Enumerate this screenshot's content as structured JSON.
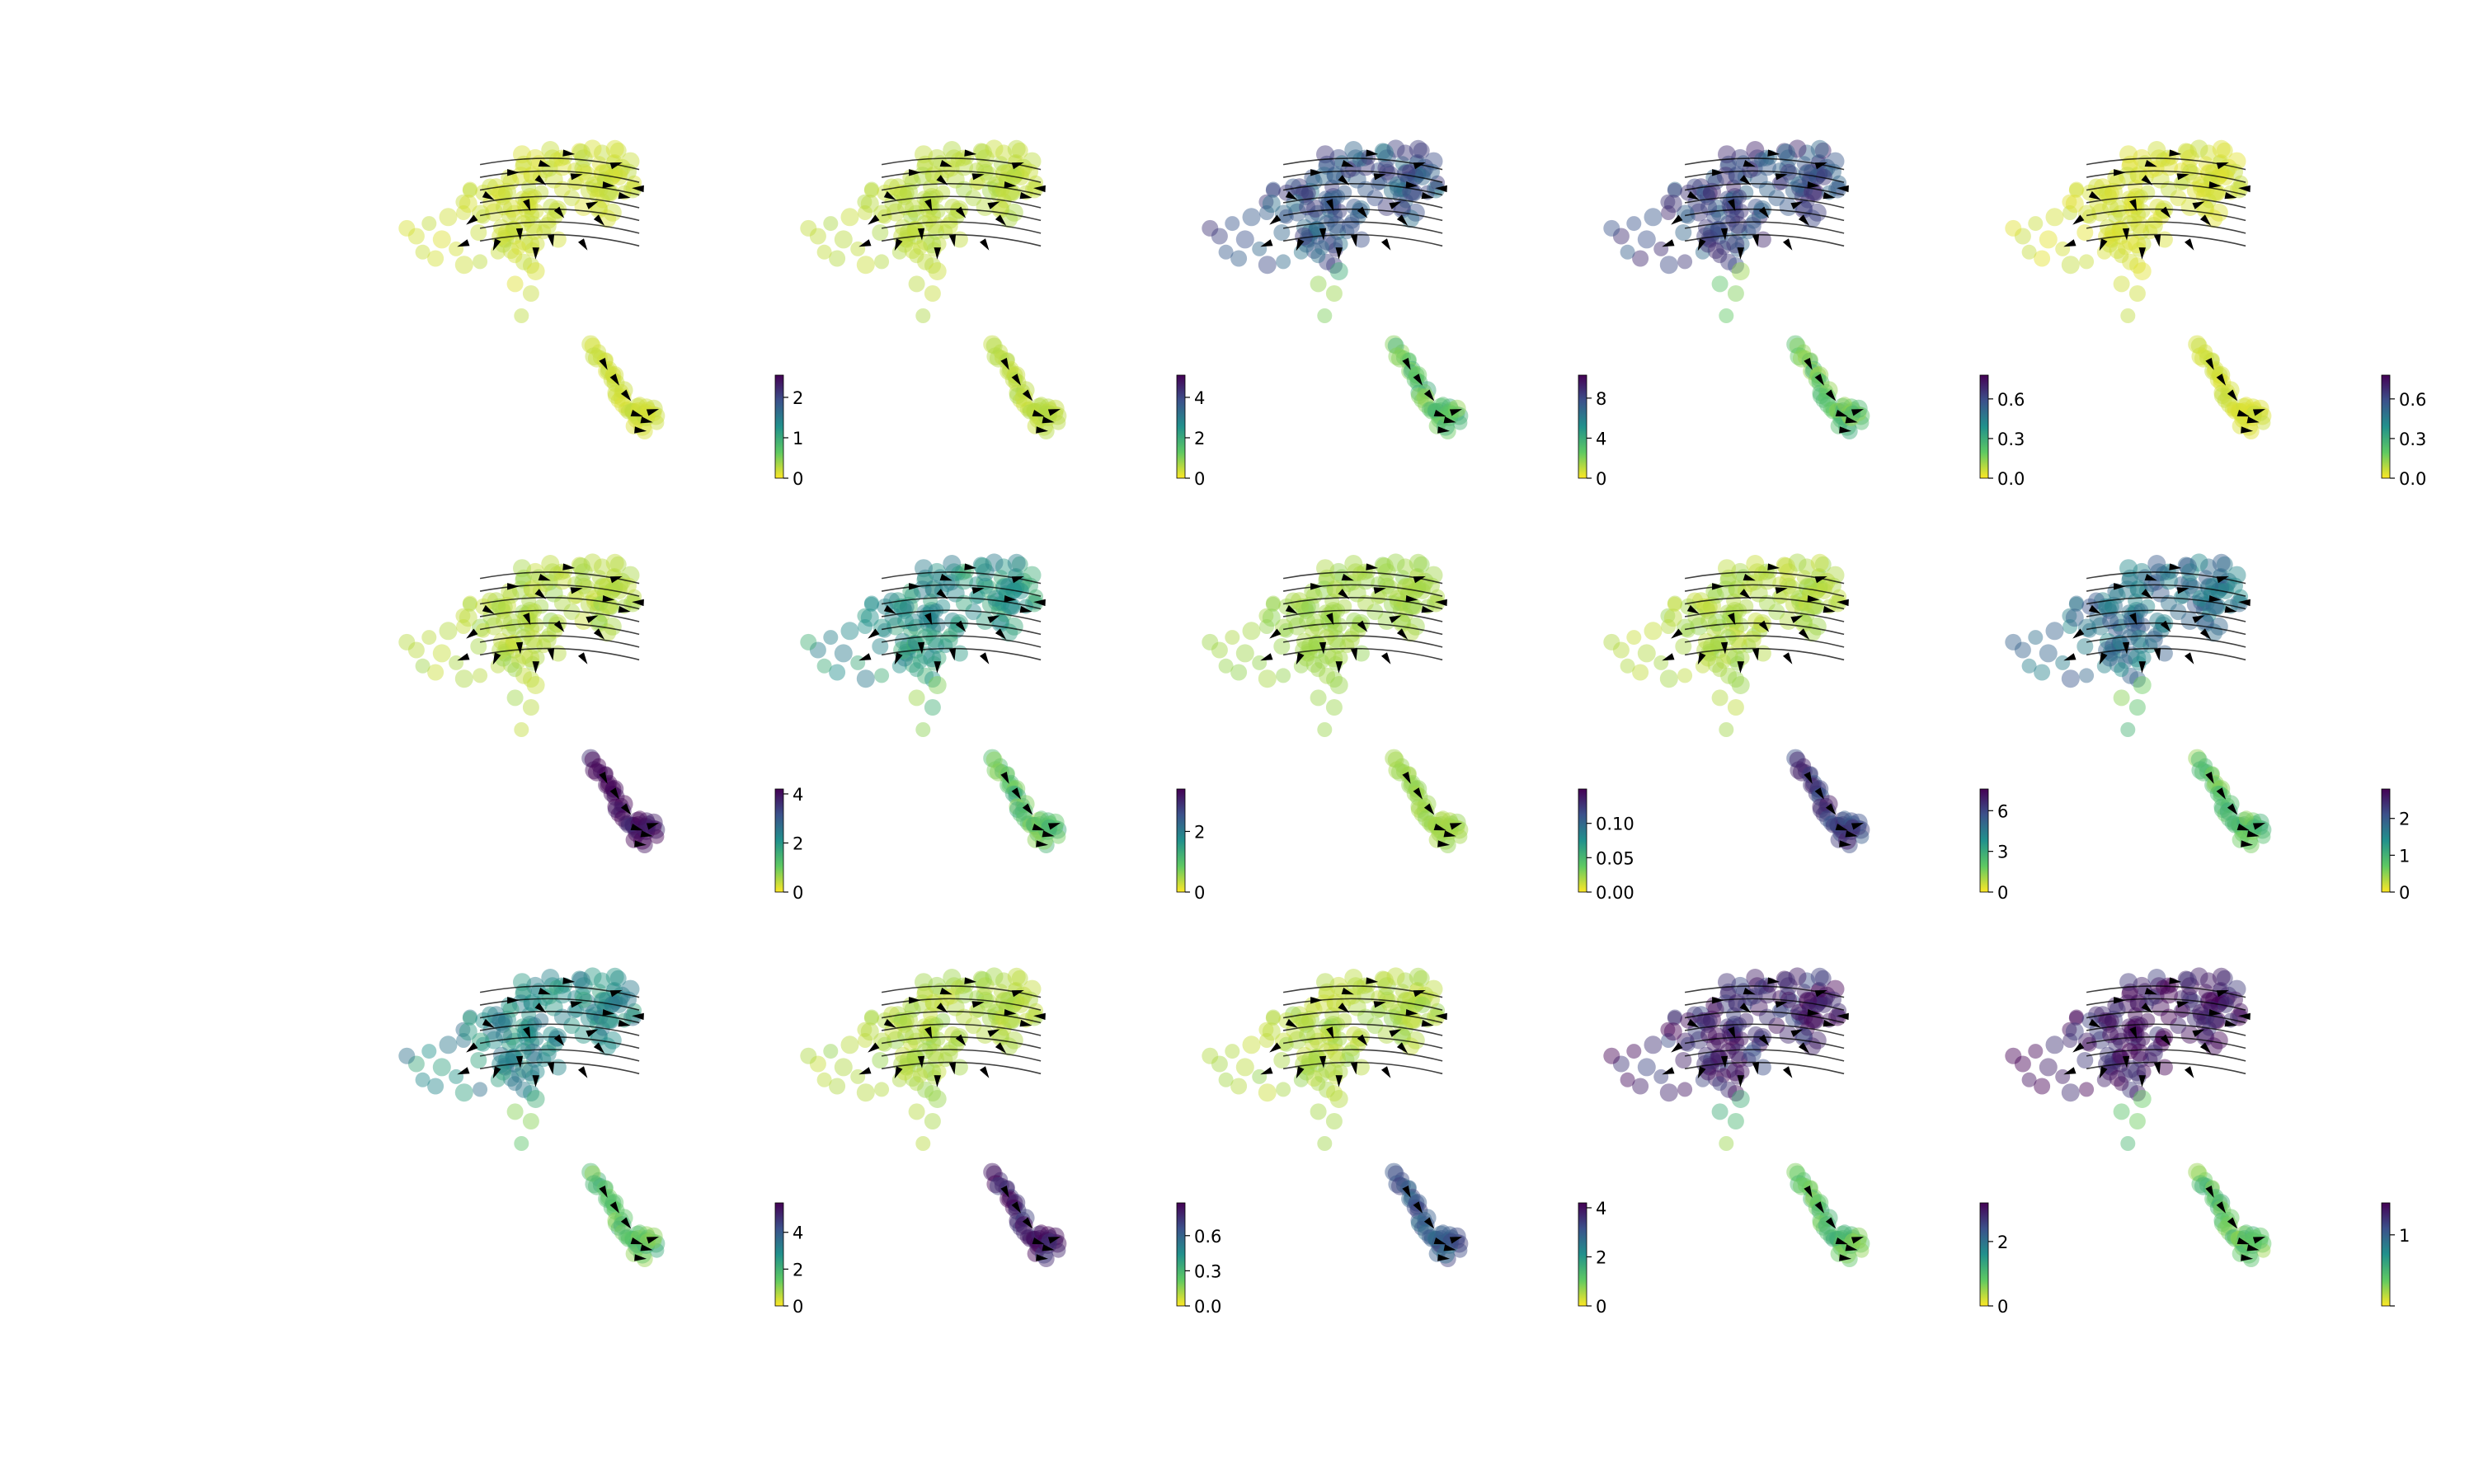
{
  "figure": {
    "colormap": [
      "#fde725",
      "#5ec962",
      "#21918c",
      "#3b528b",
      "#440154"
    ],
    "arrow_color": "#000000"
  },
  "chart_data": [
    {
      "type": "scatter",
      "panel": "r1c1",
      "colorbar_ticks": [
        {
          "v": 0,
          "label": "0"
        },
        {
          "v": 1,
          "label": "1"
        },
        {
          "v": 2,
          "label": "2"
        }
      ],
      "colorbar_range": [
        0,
        2.55
      ],
      "bright_region": "none",
      "level": 0.05
    },
    {
      "type": "scatter",
      "panel": "r1c2",
      "colorbar_ticks": [
        {
          "v": 0,
          "label": "0"
        },
        {
          "v": 2,
          "label": "2"
        },
        {
          "v": 4,
          "label": "4"
        }
      ],
      "colorbar_range": [
        0,
        5.1
      ],
      "bright_region": "none",
      "level": 0.08
    },
    {
      "type": "scatter",
      "panel": "r1c3",
      "colorbar_ticks": [
        {
          "v": 0,
          "label": "0"
        },
        {
          "v": 4,
          "label": "4"
        },
        {
          "v": 8,
          "label": "8"
        }
      ],
      "colorbar_range": [
        0,
        10.3
      ],
      "bright_region": "upper",
      "level": 0.7
    },
    {
      "type": "scatter",
      "panel": "r1c4",
      "colorbar_ticks": [
        {
          "v": 0,
          "label": "0.0"
        },
        {
          "v": 0.3,
          "label": "0.3"
        },
        {
          "v": 0.6,
          "label": "0.6"
        }
      ],
      "colorbar_range": [
        0,
        0.78
      ],
      "bright_region": "upper",
      "level": 0.75
    },
    {
      "type": "scatter",
      "panel": "r1c5",
      "colorbar_ticks": [
        {
          "v": 0,
          "label": "0.0"
        },
        {
          "v": 0.3,
          "label": "0.3"
        },
        {
          "v": 0.6,
          "label": "0.6"
        }
      ],
      "colorbar_range": [
        0,
        0.78
      ],
      "bright_region": "none",
      "level": 0.04
    },
    {
      "type": "scatter",
      "panel": "r2c1",
      "colorbar_ticks": [
        {
          "v": 0,
          "label": "0"
        },
        {
          "v": 2,
          "label": "2"
        },
        {
          "v": 4,
          "label": "4"
        }
      ],
      "colorbar_range": [
        0,
        4.2
      ],
      "bright_region": "lower",
      "level": 0.95
    },
    {
      "type": "scatter",
      "panel": "r2c2",
      "colorbar_ticks": [
        {
          "v": 0,
          "label": "0"
        },
        {
          "v": 2,
          "label": "2"
        }
      ],
      "colorbar_range": [
        0,
        3.4
      ],
      "bright_region": "upper",
      "level": 0.45
    },
    {
      "type": "scatter",
      "panel": "r2c3",
      "colorbar_ticks": [
        {
          "v": 0,
          "label": "0.00"
        },
        {
          "v": 0.05,
          "label": "0.05"
        },
        {
          "v": 0.1,
          "label": "0.10"
        }
      ],
      "colorbar_range": [
        0,
        0.15
      ],
      "bright_region": "none",
      "level": 0.12
    },
    {
      "type": "scatter",
      "panel": "r2c4",
      "colorbar_ticks": [
        {
          "v": 0,
          "label": "0"
        },
        {
          "v": 3,
          "label": "3"
        },
        {
          "v": 6,
          "label": "6"
        }
      ],
      "colorbar_range": [
        0,
        7.6
      ],
      "bright_region": "lower",
      "level": 0.8
    },
    {
      "type": "scatter",
      "panel": "r2c5",
      "colorbar_ticks": [
        {
          "v": 0,
          "label": "0"
        },
        {
          "v": 1,
          "label": "1"
        },
        {
          "v": 2,
          "label": "2"
        }
      ],
      "colorbar_range": [
        0,
        2.8
      ],
      "bright_region": "upper",
      "level": 0.6
    },
    {
      "type": "scatter",
      "panel": "r3c1",
      "colorbar_ticks": [
        {
          "v": 0,
          "label": "0"
        },
        {
          "v": 2,
          "label": "2"
        },
        {
          "v": 4,
          "label": "4"
        }
      ],
      "colorbar_range": [
        0,
        5.6
      ],
      "bright_region": "upper",
      "level": 0.5
    },
    {
      "type": "scatter",
      "panel": "r3c2",
      "colorbar_ticks": [
        {
          "v": 0,
          "label": "0.0"
        },
        {
          "v": 0.3,
          "label": "0.3"
        },
        {
          "v": 0.6,
          "label": "0.6"
        }
      ],
      "colorbar_range": [
        0,
        0.88
      ],
      "bright_region": "lower",
      "level": 0.9
    },
    {
      "type": "scatter",
      "panel": "r3c3",
      "colorbar_ticks": [
        {
          "v": 0,
          "label": "0"
        },
        {
          "v": 2,
          "label": "2"
        },
        {
          "v": 4,
          "label": "4"
        }
      ],
      "colorbar_range": [
        0,
        4.2
      ],
      "bright_region": "lower",
      "level": 0.7
    },
    {
      "type": "scatter",
      "panel": "r3c4",
      "colorbar_ticks": [
        {
          "v": 0,
          "label": "0"
        },
        {
          "v": 2,
          "label": "2"
        }
      ],
      "colorbar_range": [
        0,
        3.2
      ],
      "bright_region": "upper",
      "level": 0.85
    },
    {
      "type": "scatter",
      "panel": "r3c5",
      "colorbar_ticks": [
        {
          "v": 0,
          "label": ""
        },
        {
          "v": 1,
          "label": "1"
        }
      ],
      "colorbar_range": [
        0,
        1.45
      ],
      "bright_region": "upper",
      "level": 0.9
    }
  ]
}
